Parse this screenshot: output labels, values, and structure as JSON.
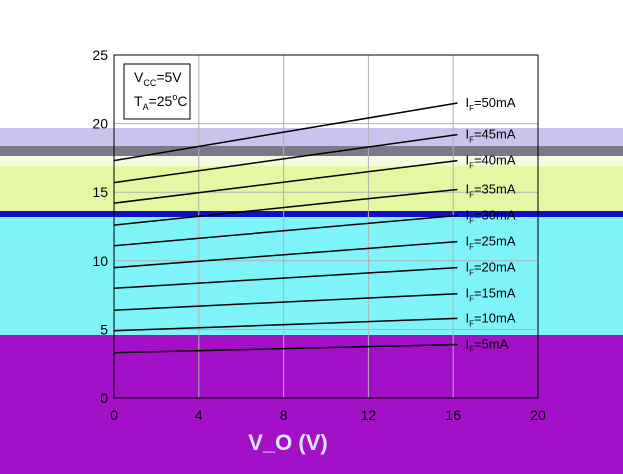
{
  "chart_data": {
    "type": "line",
    "title": "",
    "xlabel": "V_O (V)",
    "ylabel": "",
    "xlim": [
      0,
      20
    ],
    "ylim": [
      0,
      25
    ],
    "xticks": [
      "0",
      "4",
      "8",
      "12",
      "16",
      "20"
    ],
    "yticks": [
      "0",
      "5",
      "10",
      "15",
      "20",
      "25"
    ],
    "grid": true,
    "conditions": {
      "vcc": "V_CC=5V",
      "ta": "T_A=25°C"
    },
    "series": [
      {
        "name": "I_F=50mA",
        "x": [
          0,
          16.2
        ],
        "y": [
          17.3,
          21.5
        ]
      },
      {
        "name": "I_F=45mA",
        "x": [
          0,
          16.2
        ],
        "y": [
          15.7,
          19.2
        ]
      },
      {
        "name": "I_F=40mA",
        "x": [
          0,
          16.2
        ],
        "y": [
          14.2,
          17.3
        ]
      },
      {
        "name": "I_F=35mA",
        "x": [
          0,
          16.2
        ],
        "y": [
          12.6,
          15.2
        ]
      },
      {
        "name": "I_F=30mA",
        "x": [
          0,
          16.2
        ],
        "y": [
          11.1,
          13.3
        ]
      },
      {
        "name": "I_F=25mA",
        "x": [
          0,
          16.2
        ],
        "y": [
          9.5,
          11.4
        ]
      },
      {
        "name": "I_F=20mA",
        "x": [
          0,
          16.2
        ],
        "y": [
          8.0,
          9.5
        ]
      },
      {
        "name": "I_F=15mA",
        "x": [
          0,
          16.2
        ],
        "y": [
          6.4,
          7.6
        ]
      },
      {
        "name": "I_F=10mA",
        "x": [
          0,
          16.2
        ],
        "y": [
          4.9,
          5.8
        ]
      },
      {
        "name": "I_F=5mA",
        "x": [
          0,
          16.2
        ],
        "y": [
          3.3,
          3.9
        ]
      }
    ]
  },
  "colors": {
    "band_lavender": "#c9c4ee",
    "band_gray": "#7a7a86",
    "band_white": "#ffffff",
    "band_yellow": "#e6f7a4",
    "band_blue": "#1010c8",
    "band_cyan": "#7ff4f8",
    "band_purple": "#a410c8"
  }
}
